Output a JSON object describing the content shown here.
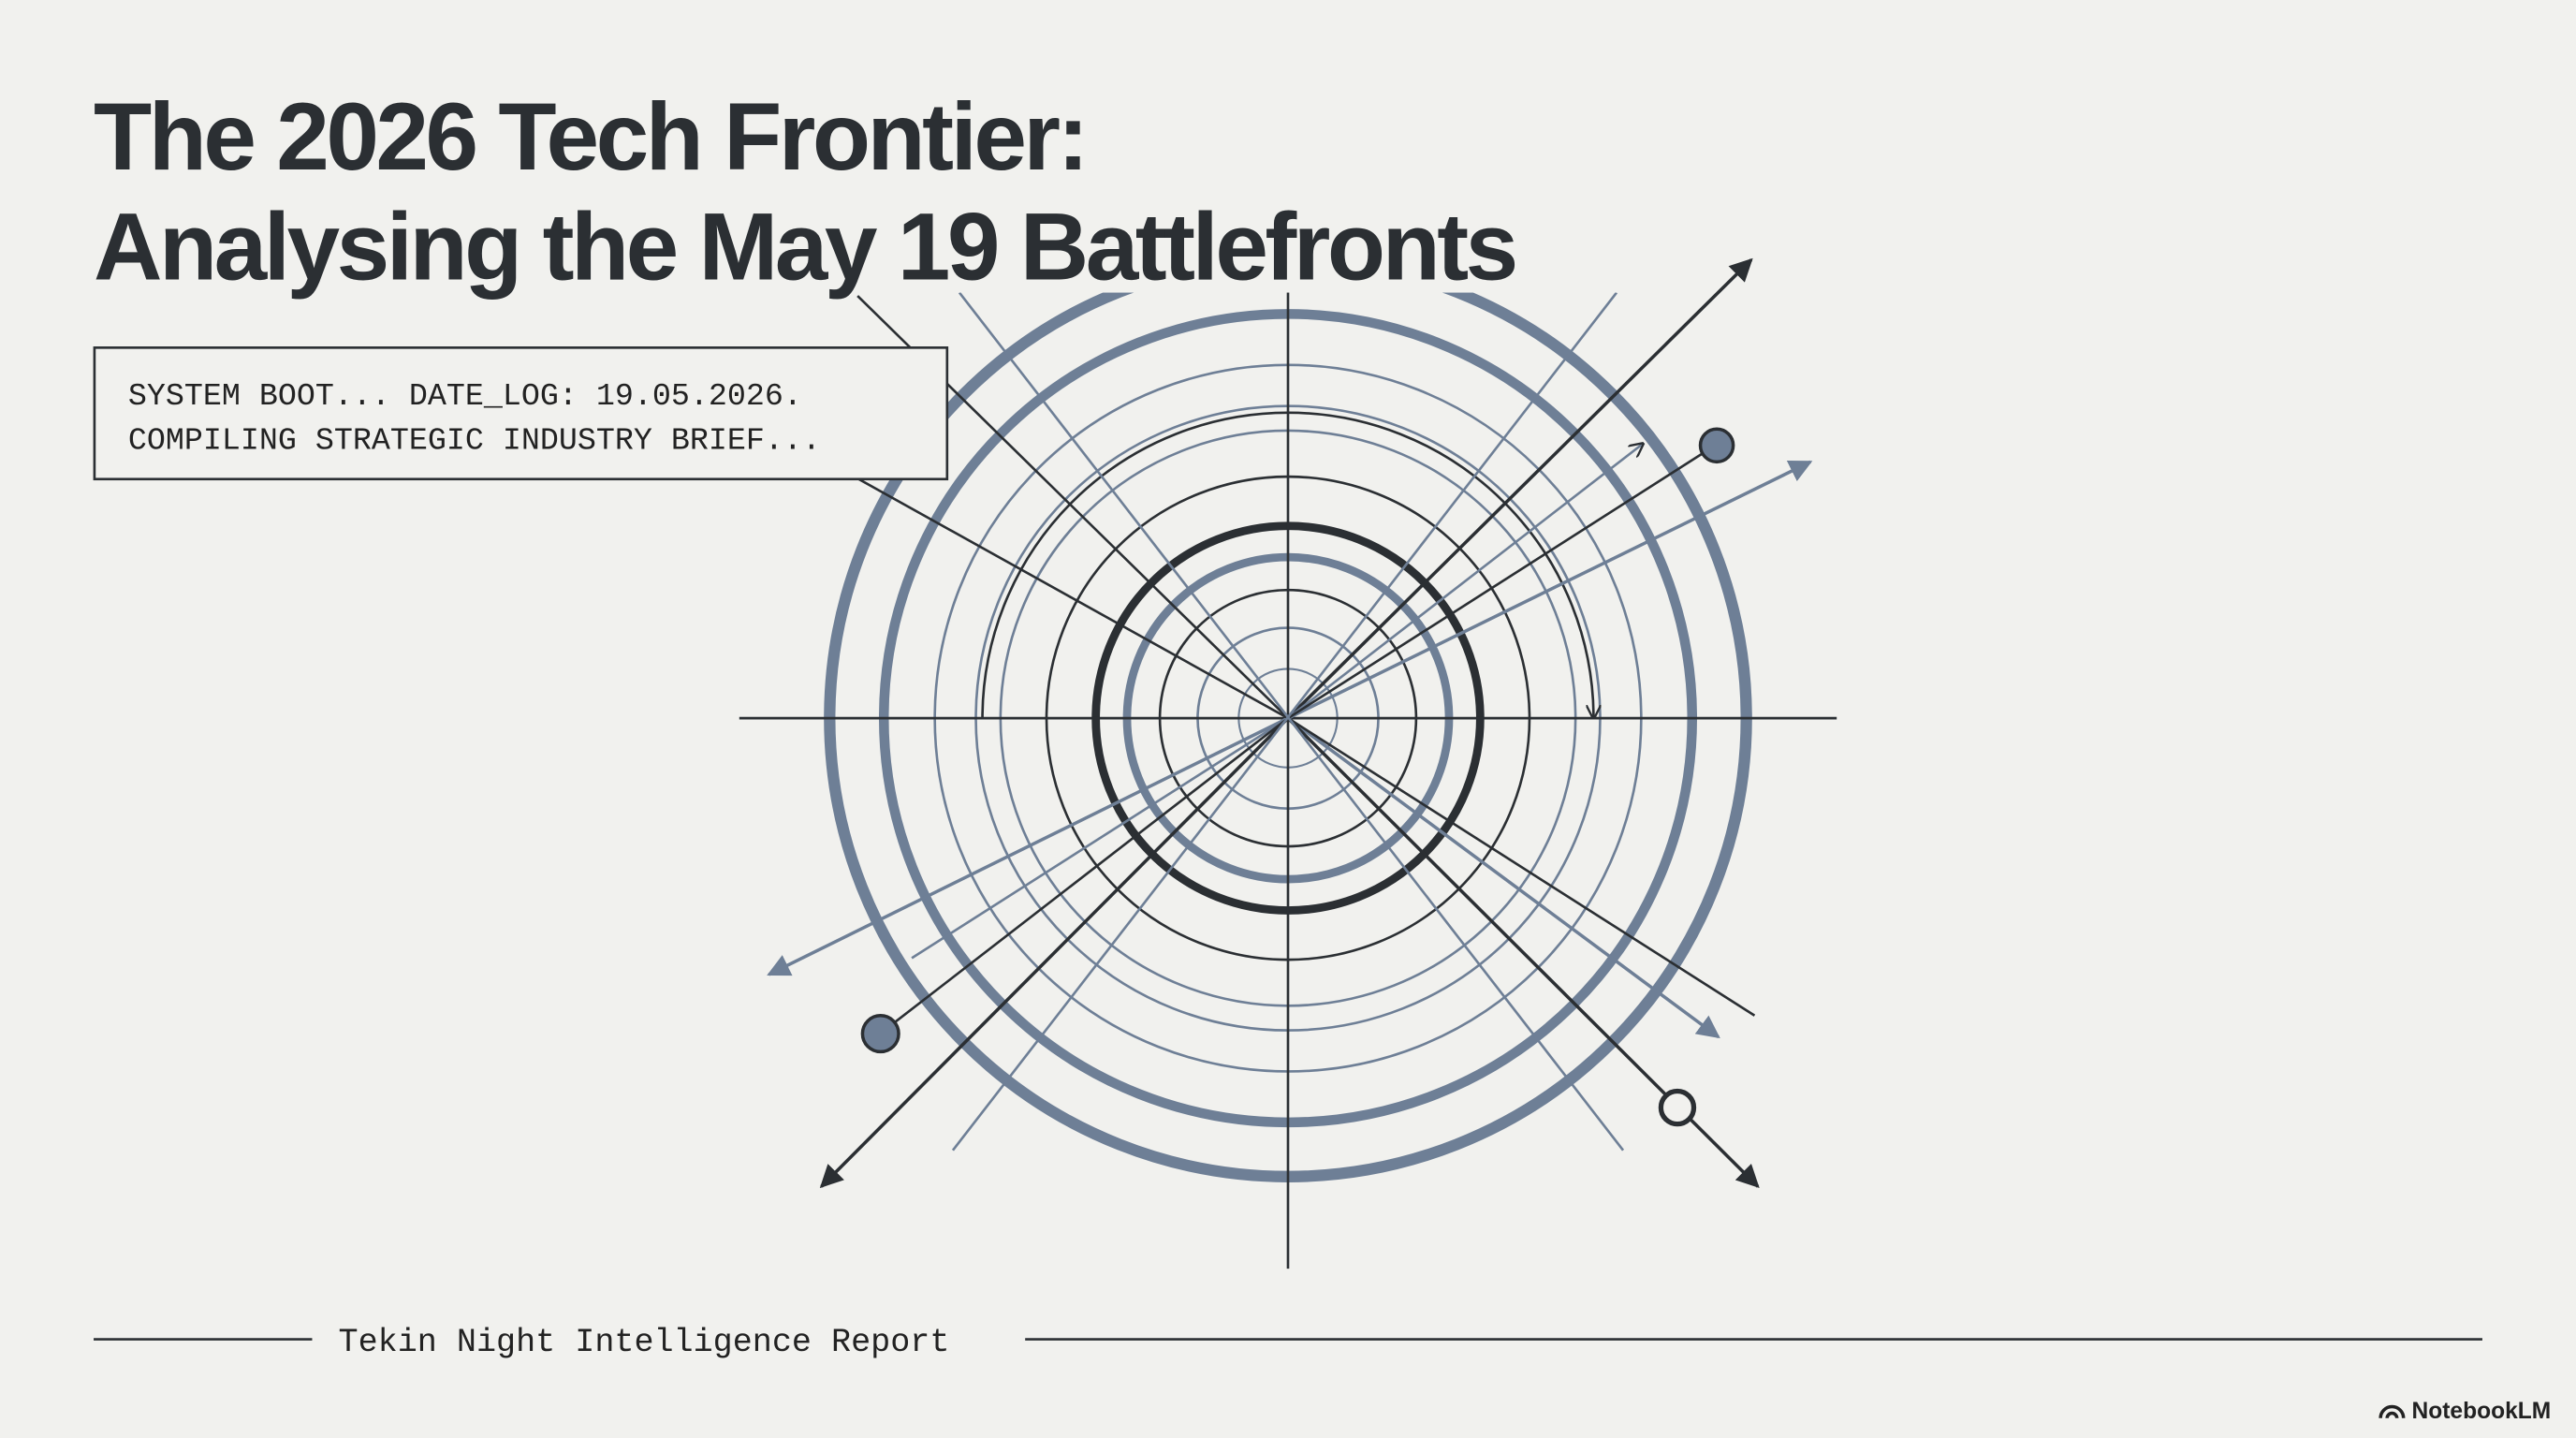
{
  "header": {
    "title_lines": [
      "The 2026 Tech Frontier:",
      "Analysing the May 19 Battlefronts"
    ]
  },
  "terminal": {
    "lines": [
      "SYSTEM BOOT... DATE_LOG: 19.05.2026.",
      "COMPILING STRATEGIC INDUSTRY BRIEF..."
    ]
  },
  "footer": {
    "report": "Tekin Night Intelligence Report",
    "brand": "NotebookLM"
  }
}
